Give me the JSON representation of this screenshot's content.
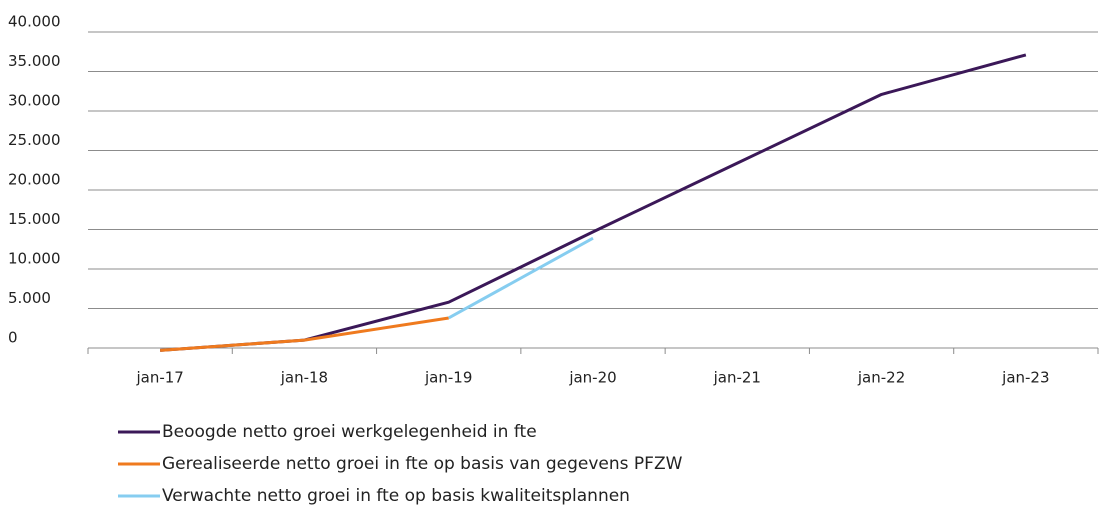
{
  "chart_data": {
    "type": "line",
    "categories": [
      "jan-17",
      "jan-18",
      "jan-19",
      "jan-20",
      "jan-21",
      "jan-22",
      "jan-23"
    ],
    "series": [
      {
        "name": "Beoogde netto groei werkgelegenheid in fte",
        "color": "#3b1858",
        "values": [
          -300,
          1000,
          5800,
          14700,
          23400,
          32100,
          37100
        ]
      },
      {
        "name": "Gerealiseerde netto groei in fte op basis van gegevens PFZW",
        "color": "#ef7a1e",
        "values": [
          -300,
          1000,
          3800,
          null,
          null,
          null,
          null
        ]
      },
      {
        "name": "Verwachte netto groei in fte op basis kwaliteitsplannen",
        "color": "#86cdf0",
        "values": [
          null,
          null,
          3800,
          13900,
          null,
          null,
          null
        ]
      }
    ],
    "ylim": [
      0,
      40000
    ],
    "yticks": [
      0,
      {
        "value": 5000,
        "label": "5.000"
      },
      {
        "value": 10000,
        "label": "10.000"
      },
      {
        "value": 15000,
        "label": "15.000"
      },
      {
        "value": 20000,
        "label": "20.000"
      },
      {
        "value": 25000,
        "label": "25.000"
      },
      {
        "value": 30000,
        "label": "30.000"
      },
      {
        "value": 35000,
        "label": "35.000"
      },
      {
        "value": 40000,
        "label": "40.000"
      }
    ],
    "grid": true
  }
}
